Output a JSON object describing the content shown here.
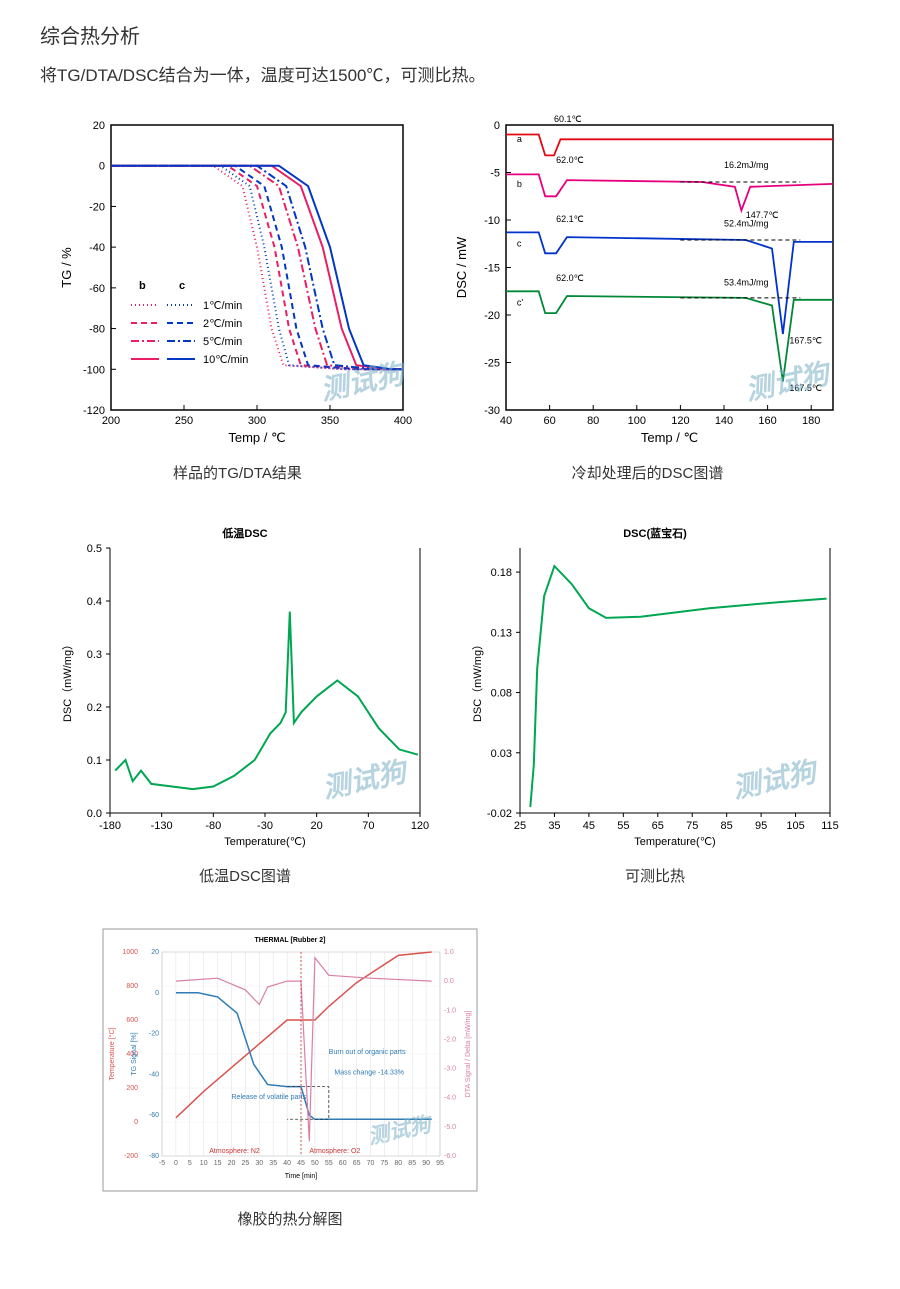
{
  "header": {
    "title": "综合热分析",
    "subtitle": "将TG/DTA/DSC结合为一体，温度可达1500℃，可测比热。"
  },
  "watermark_text": "测试狗",
  "chart1": {
    "caption": "样品的TG/DTA结果",
    "xlabel": "Temp  /  ℃",
    "ylabel": "TG  /  %",
    "xlim": [
      200,
      400
    ],
    "xtick_step": 50,
    "ylim": [
      -120,
      20
    ],
    "ytick_step": 20,
    "legend_header_b": "b",
    "legend_header_c": "c",
    "legend_rates": [
      "1℃/min",
      "2℃/min",
      "5℃/min",
      "10℃/min"
    ],
    "legend_styles_b": [
      "dotted",
      "dashed",
      "dashdot",
      "solid"
    ],
    "color_b": "#e91e63",
    "color_c": "#0037c5",
    "border_color": "#000",
    "series": {
      "b_dotted": [
        [
          200,
          0
        ],
        [
          270,
          0
        ],
        [
          290,
          -10
        ],
        [
          300,
          -40
        ],
        [
          310,
          -80
        ],
        [
          318,
          -98
        ],
        [
          360,
          -100
        ],
        [
          400,
          -100
        ]
      ],
      "b_dashed": [
        [
          200,
          0
        ],
        [
          280,
          0
        ],
        [
          300,
          -10
        ],
        [
          312,
          -40
        ],
        [
          322,
          -80
        ],
        [
          330,
          -98
        ],
        [
          370,
          -100
        ],
        [
          400,
          -100
        ]
      ],
      "b_dashdot": [
        [
          200,
          0
        ],
        [
          295,
          0
        ],
        [
          315,
          -10
        ],
        [
          328,
          -40
        ],
        [
          340,
          -80
        ],
        [
          348,
          -98
        ],
        [
          380,
          -100
        ],
        [
          400,
          -100
        ]
      ],
      "b_solid": [
        [
          200,
          0
        ],
        [
          310,
          0
        ],
        [
          330,
          -10
        ],
        [
          345,
          -40
        ],
        [
          358,
          -80
        ],
        [
          368,
          -98
        ],
        [
          390,
          -100
        ],
        [
          400,
          -100
        ]
      ],
      "c_dotted": [
        [
          200,
          0
        ],
        [
          275,
          0
        ],
        [
          295,
          -10
        ],
        [
          305,
          -40
        ],
        [
          315,
          -80
        ],
        [
          322,
          -98
        ],
        [
          360,
          -100
        ],
        [
          400,
          -100
        ]
      ],
      "c_dashed": [
        [
          200,
          0
        ],
        [
          285,
          0
        ],
        [
          305,
          -10
        ],
        [
          317,
          -40
        ],
        [
          327,
          -80
        ],
        [
          335,
          -98
        ],
        [
          370,
          -100
        ],
        [
          400,
          -100
        ]
      ],
      "c_dashdot": [
        [
          200,
          0
        ],
        [
          300,
          0
        ],
        [
          320,
          -10
        ],
        [
          333,
          -40
        ],
        [
          345,
          -80
        ],
        [
          353,
          -98
        ],
        [
          382,
          -100
        ],
        [
          400,
          -100
        ]
      ],
      "c_solid": [
        [
          200,
          0
        ],
        [
          315,
          0
        ],
        [
          335,
          -10
        ],
        [
          350,
          -40
        ],
        [
          363,
          -80
        ],
        [
          373,
          -98
        ],
        [
          392,
          -100
        ],
        [
          400,
          -100
        ]
      ]
    }
  },
  "chart2": {
    "caption": "冷却处理后的DSC图谱",
    "xlabel": "Temp  /  ℃",
    "ylabel": "DSC  /  mW",
    "xlim": [
      40,
      190
    ],
    "xticks": [
      40,
      60,
      80,
      100,
      120,
      140,
      160,
      180
    ],
    "ylim": [
      -30,
      0
    ],
    "ytick_step": 5,
    "annotations": {
      "a_label": "a",
      "a_temp": "60.1℃",
      "b_label": "b",
      "b_temp": "62.0℃",
      "b_energy": "16.2mJ/mg",
      "b_peak": "147.7℃",
      "c_label": "c",
      "c_temp": "62.1℃",
      "c_energy": "52.4mJ/mg",
      "cp_label": "c'",
      "cp_temp": "62.0℃",
      "cp_energy": "53.4mJ/mg",
      "right_peak1": "167.5℃",
      "right_peak2": "167.5℃"
    },
    "colors": {
      "a": "#e30613",
      "b": "#e6007e",
      "c": "#0033cc",
      "cp": "#008837"
    },
    "series": {
      "a": [
        [
          40,
          -1
        ],
        [
          55,
          -1
        ],
        [
          58,
          -3.2
        ],
        [
          62,
          -3.2
        ],
        [
          65,
          -1.5
        ],
        [
          190,
          -1.5
        ]
      ],
      "b": [
        [
          40,
          -5.2
        ],
        [
          55,
          -5.2
        ],
        [
          58,
          -7.5
        ],
        [
          63,
          -7.5
        ],
        [
          68,
          -5.8
        ],
        [
          130,
          -6
        ],
        [
          145,
          -6.5
        ],
        [
          148,
          -9
        ],
        [
          152,
          -6.5
        ],
        [
          190,
          -6.2
        ]
      ],
      "c": [
        [
          40,
          -11.3
        ],
        [
          55,
          -11.3
        ],
        [
          58,
          -13.5
        ],
        [
          63,
          -13.5
        ],
        [
          68,
          -11.8
        ],
        [
          150,
          -12.1
        ],
        [
          162,
          -13
        ],
        [
          167,
          -22
        ],
        [
          172,
          -12.3
        ],
        [
          190,
          -12.3
        ]
      ],
      "cp": [
        [
          40,
          -17.5
        ],
        [
          55,
          -17.5
        ],
        [
          58,
          -19.8
        ],
        [
          63,
          -19.8
        ],
        [
          68,
          -18
        ],
        [
          150,
          -18.2
        ],
        [
          162,
          -19
        ],
        [
          167,
          -27
        ],
        [
          172,
          -18.4
        ],
        [
          190,
          -18.4
        ]
      ]
    }
  },
  "chart3": {
    "caption": "低温DSC图谱",
    "title": "低温DSC",
    "xlabel": "Temperature(℃)",
    "ylabel": "DSC（mW/mg）",
    "xlim": [
      -180,
      120
    ],
    "xtick_step": 50,
    "ylim": [
      0,
      0.5
    ],
    "ytick_step": 0.1,
    "line_color": "#00a651",
    "series": [
      [
        -175,
        0.08
      ],
      [
        -165,
        0.1
      ],
      [
        -158,
        0.06
      ],
      [
        -150,
        0.08
      ],
      [
        -140,
        0.055
      ],
      [
        -120,
        0.05
      ],
      [
        -100,
        0.045
      ],
      [
        -80,
        0.05
      ],
      [
        -60,
        0.07
      ],
      [
        -40,
        0.1
      ],
      [
        -25,
        0.15
      ],
      [
        -15,
        0.17
      ],
      [
        -10,
        0.19
      ],
      [
        -6,
        0.38
      ],
      [
        -2,
        0.17
      ],
      [
        5,
        0.19
      ],
      [
        20,
        0.22
      ],
      [
        40,
        0.25
      ],
      [
        60,
        0.22
      ],
      [
        80,
        0.16
      ],
      [
        100,
        0.12
      ],
      [
        118,
        0.11
      ]
    ]
  },
  "chart4": {
    "caption": "可测比热",
    "title": "DSC(蓝宝石)",
    "xlabel": "Temperature(℃)",
    "ylabel": "DSC（mW/mg）",
    "xlim": [
      25,
      115
    ],
    "xtick_step": 10,
    "ylim": [
      -0.02,
      0.2
    ],
    "yticks": [
      -0.02,
      0.03,
      0.08,
      0.13,
      0.18
    ],
    "line_color": "#00a651",
    "series": [
      [
        28,
        -0.015
      ],
      [
        29,
        0.02
      ],
      [
        30,
        0.1
      ],
      [
        32,
        0.16
      ],
      [
        35,
        0.185
      ],
      [
        40,
        0.17
      ],
      [
        45,
        0.15
      ],
      [
        50,
        0.142
      ],
      [
        60,
        0.143
      ],
      [
        80,
        0.15
      ],
      [
        100,
        0.155
      ],
      [
        114,
        0.158
      ]
    ]
  },
  "chart5": {
    "caption": "橡胶的热分解图",
    "box_title": "THERMAL [Rubber 2]",
    "xlabel": "Time  [min]",
    "ylabel_left1": "Temperature [°C]",
    "ylabel_left2": "TG Signal [%]",
    "ylabel_right": "DTA Signal / Delta [mW/mg]",
    "annotations": {
      "release": "Release of volatile parts",
      "burnout": "Burn out of organic parts",
      "mass_change": "Mass change\n-14.33%",
      "atm_n2": "Atmosphere: N2",
      "atm_o2": "Atmosphere: O2"
    },
    "colors": {
      "temp": "#d9534f",
      "tg": "#2e7bb5",
      "dta": "#d97fa6"
    },
    "xlim": [
      -5,
      95
    ],
    "xtick_step": 5,
    "left1_range": [
      -200,
      1000
    ],
    "left1_step": 200,
    "left2_range": [
      -80,
      20
    ],
    "left2_step": 20,
    "right_range": [
      -6,
      1
    ],
    "right_step": 1,
    "series": {
      "temp": [
        [
          0,
          25
        ],
        [
          10,
          180
        ],
        [
          20,
          320
        ],
        [
          30,
          460
        ],
        [
          40,
          600
        ],
        [
          45,
          600
        ],
        [
          50,
          600
        ],
        [
          55,
          680
        ],
        [
          65,
          820
        ],
        [
          80,
          980
        ],
        [
          92,
          1000
        ]
      ],
      "tg": [
        [
          0,
          0
        ],
        [
          8,
          0
        ],
        [
          15,
          -2
        ],
        [
          22,
          -10
        ],
        [
          28,
          -35
        ],
        [
          33,
          -45
        ],
        [
          40,
          -46
        ],
        [
          45,
          -46
        ],
        [
          48,
          -60
        ],
        [
          50,
          -62
        ],
        [
          55,
          -62
        ],
        [
          92,
          -62
        ]
      ],
      "dta": [
        [
          0,
          0
        ],
        [
          15,
          0.1
        ],
        [
          25,
          -0.3
        ],
        [
          30,
          -0.8
        ],
        [
          33,
          -0.2
        ],
        [
          40,
          0
        ],
        [
          45,
          0
        ],
        [
          48,
          -5.5
        ],
        [
          50,
          0.8
        ],
        [
          55,
          0.2
        ],
        [
          70,
          0.1
        ],
        [
          92,
          0
        ]
      ]
    }
  }
}
